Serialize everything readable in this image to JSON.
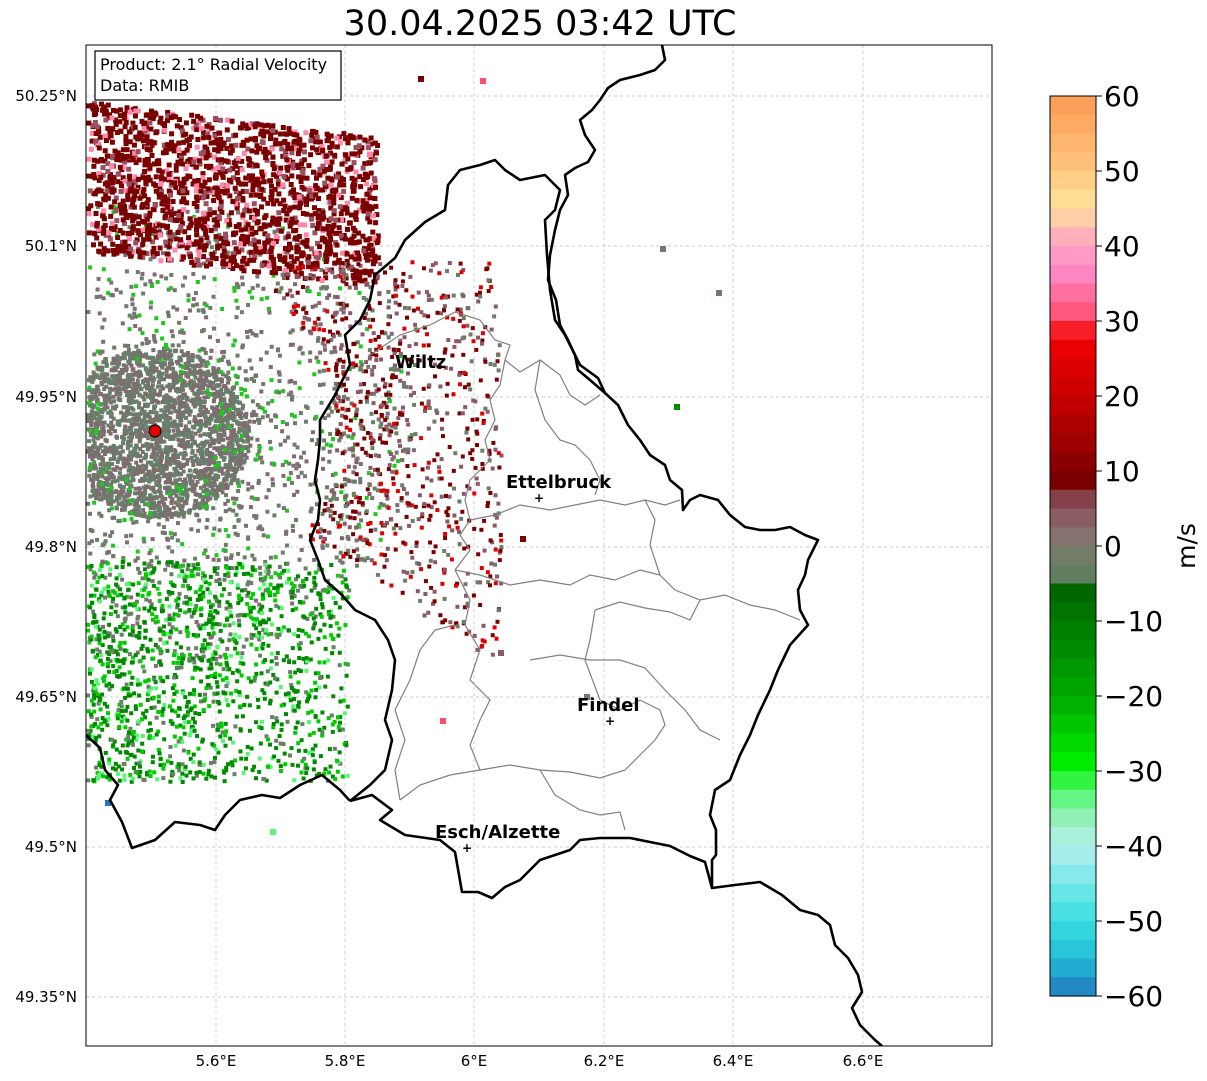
{
  "title": "30.04.2025 03:42 UTC",
  "info": {
    "product": "Product: 2.1° Radial Velocity",
    "data": "Data: RMIB"
  },
  "axes": {
    "lat_ticks": [
      "50.25°N",
      "50.1°N",
      "49.95°N",
      "49.8°N",
      "49.65°N",
      "49.5°N",
      "49.35°N"
    ],
    "lon_ticks": [
      "5.6°E",
      "5.8°E",
      "6°E",
      "6.2°E",
      "6.4°E",
      "6.6°E"
    ]
  },
  "cities": [
    {
      "name": "Wiltz",
      "marker": false
    },
    {
      "name": "Ettelbruck",
      "marker": true
    },
    {
      "name": "Findel",
      "marker": true
    },
    {
      "name": "Esch/Alzette",
      "marker": true
    }
  ],
  "colorbar": {
    "label": "m/s",
    "ticks": [
      "60",
      "50",
      "40",
      "30",
      "20",
      "10",
      "0",
      "−10",
      "−20",
      "−30",
      "−40",
      "−50",
      "−60"
    ],
    "min": -60,
    "max": 60,
    "stops": [
      {
        "v": 60,
        "c": "#fc9a52"
      },
      {
        "v": 50,
        "c": "#ffc680"
      },
      {
        "v": 45,
        "c": "#ffe49a"
      },
      {
        "v": 42,
        "c": "#ffb4b8"
      },
      {
        "v": 37,
        "c": "#ff8ccc"
      },
      {
        "v": 30,
        "c": "#ff4d6a"
      },
      {
        "v": 28,
        "c": "#f40000"
      },
      {
        "v": 20,
        "c": "#c80000"
      },
      {
        "v": 8,
        "c": "#730000"
      },
      {
        "v": 6,
        "c": "#874a55"
      },
      {
        "v": 2,
        "c": "#8c6b72"
      },
      {
        "v": 0,
        "c": "#7a7a6b"
      },
      {
        "v": -4,
        "c": "#5f7f5e"
      },
      {
        "v": -6,
        "c": "#006600"
      },
      {
        "v": -20,
        "c": "#00aa00"
      },
      {
        "v": -29,
        "c": "#00ee00"
      },
      {
        "v": -33,
        "c": "#55f775"
      },
      {
        "v": -36,
        "c": "#8ff1b0"
      },
      {
        "v": -40,
        "c": "#b6f0f0"
      },
      {
        "v": -50,
        "c": "#39dfe0"
      },
      {
        "v": -55,
        "c": "#24bcd6"
      },
      {
        "v": -60,
        "c": "#2176c0"
      }
    ]
  },
  "colors": {
    "border": "#000000",
    "admin": "#808080",
    "radar_site": "#e00000",
    "grid": "#bbbbbb"
  }
}
